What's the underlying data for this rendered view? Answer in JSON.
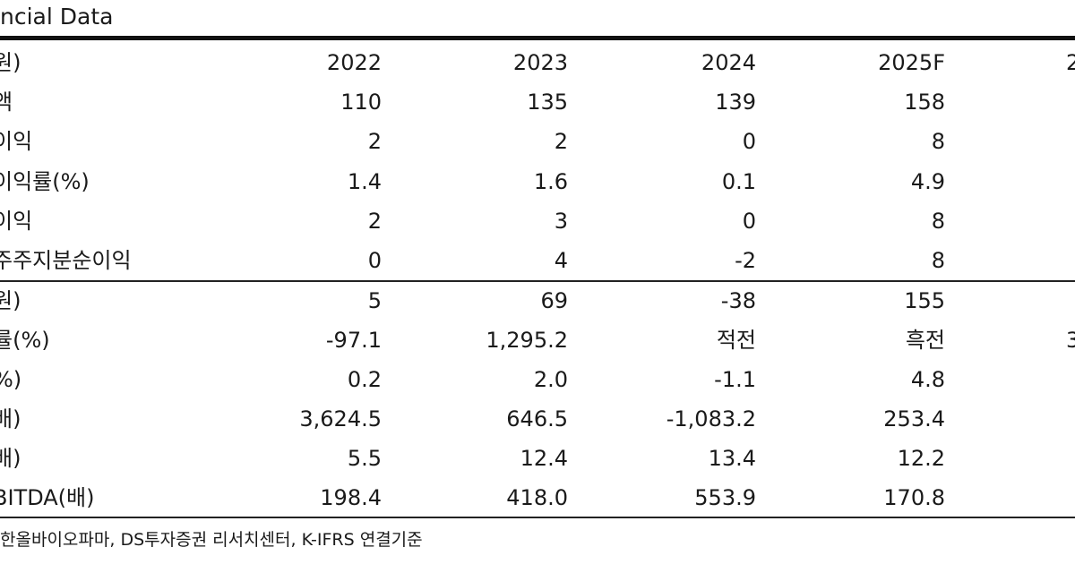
{
  "title": "ncial Data",
  "header": {
    "label": "원)",
    "cols": [
      "2022",
      "2023",
      "2024",
      "2025F",
      "2"
    ]
  },
  "rows": [
    {
      "label": "액",
      "values": [
        "110",
        "135",
        "139",
        "158",
        ""
      ]
    },
    {
      "label": "이익",
      "values": [
        "2",
        "2",
        "0",
        "8",
        ""
      ]
    },
    {
      "label": "이익률(%)",
      "values": [
        "1.4",
        "1.6",
        "0.1",
        "4.9",
        ""
      ]
    },
    {
      "label": "이익",
      "values": [
        "2",
        "3",
        "0",
        "8",
        ""
      ]
    },
    {
      "label": "주주지분순이익",
      "values": [
        "0",
        "4",
        "-2",
        "8",
        ""
      ]
    },
    {
      "label": "원)",
      "values": [
        "5",
        "69",
        "-38",
        "155",
        ""
      ]
    },
    {
      "label": "률(%)",
      "values": [
        "-97.1",
        "1,295.2",
        "적전",
        "흑전",
        "3"
      ]
    },
    {
      "label": "%)",
      "values": [
        "0.2",
        "2.0",
        "-1.1",
        "4.8",
        ""
      ]
    },
    {
      "label": "배)",
      "values": [
        "3,624.5",
        "646.5",
        "-1,083.2",
        "253.4",
        ""
      ]
    },
    {
      "label": "배)",
      "values": [
        "5.5",
        "12.4",
        "13.4",
        "12.2",
        ""
      ]
    },
    {
      "label": "BITDA(배)",
      "values": [
        "198.4",
        "418.0",
        "553.9",
        "170.8",
        ""
      ]
    }
  ],
  "source": "한올바이오파마, DS투자증권 리서치센터, K-IFRS 연결기준"
}
